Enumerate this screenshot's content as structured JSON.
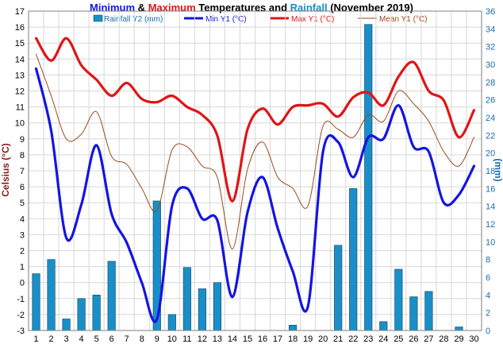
{
  "chart_data": {
    "type": "bar+line",
    "title": {
      "seg1": "Minimum",
      "seg2": " & ",
      "seg3": "Maximum",
      "seg4": " Temperatures and ",
      "seg5": "Rainfall",
      "seg6": " (November 2019)"
    },
    "colors": {
      "min": "#1515e0",
      "max": "#e01515",
      "mean": "#9c4a1c",
      "rain": "#1a8fc7",
      "rain_edge": "#0a3f66",
      "grid": "#d8d8d8",
      "rainfall_title": "#1a8fc7",
      "ylabel_left": "#8b1a1a",
      "ylabel_right": "#1a6bb0"
    },
    "ylabel_left": "Celsius (°C)",
    "ylabel_right": "(mm)",
    "y_left": {
      "min": -3,
      "max": 17,
      "step": 1
    },
    "y_right": {
      "min": 0,
      "max": 36,
      "step": 2
    },
    "grid": true,
    "legend_position": "top",
    "categories": [
      1,
      2,
      3,
      4,
      5,
      6,
      7,
      8,
      9,
      10,
      11,
      12,
      13,
      14,
      15,
      16,
      17,
      18,
      19,
      20,
      21,
      22,
      23,
      24,
      25,
      26,
      27,
      28,
      29,
      30
    ],
    "series": [
      {
        "key": "rain",
        "name": "Rainfall Y2 (mm)",
        "axis": "right",
        "kind": "bar",
        "values": [
          6.4,
          8.0,
          1.3,
          3.6,
          4.0,
          7.8,
          0,
          0,
          14.6,
          1.8,
          7.1,
          4.7,
          5.4,
          0,
          0,
          0,
          0,
          0.6,
          0,
          0,
          9.6,
          16.0,
          34.5,
          1.0,
          6.9,
          3.8,
          4.4,
          0,
          0.4,
          0
        ]
      },
      {
        "key": "min",
        "name": "Min Y1 (°C)",
        "axis": "left",
        "kind": "line",
        "values": [
          13.4,
          9.5,
          2.8,
          4.9,
          8.6,
          4.3,
          2.5,
          0.0,
          -2.3,
          4.8,
          5.9,
          4.0,
          3.9,
          -0.9,
          4.4,
          6.6,
          3.4,
          0.7,
          -1.5,
          8.2,
          8.8,
          6.6,
          9.1,
          9.0,
          11.1,
          8.5,
          8.2,
          5.0,
          5.5,
          7.3
        ]
      },
      {
        "key": "max",
        "name": "Max Y1 (°C)",
        "axis": "left",
        "kind": "line",
        "values": [
          15.3,
          13.9,
          15.3,
          13.6,
          12.7,
          11.7,
          12.5,
          11.5,
          11.3,
          11.7,
          11.0,
          10.5,
          9.2,
          5.1,
          9.6,
          10.9,
          9.9,
          11.0,
          11.1,
          11.2,
          10.4,
          11.6,
          11.9,
          11.1,
          12.9,
          13.8,
          12.0,
          11.4,
          9.1,
          10.8
        ]
      },
      {
        "key": "mean",
        "name": "Mean Y1 (°C)",
        "axis": "left",
        "kind": "line",
        "values": [
          14.3,
          11.7,
          9.0,
          9.3,
          10.7,
          7.9,
          7.4,
          5.9,
          4.5,
          8.3,
          8.5,
          7.3,
          6.6,
          2.1,
          7.1,
          8.8,
          6.6,
          5.9,
          4.8,
          9.8,
          9.6,
          9.1,
          10.5,
          10.1,
          12.0,
          11.2,
          10.1,
          8.2,
          7.3,
          9.1
        ]
      }
    ]
  }
}
